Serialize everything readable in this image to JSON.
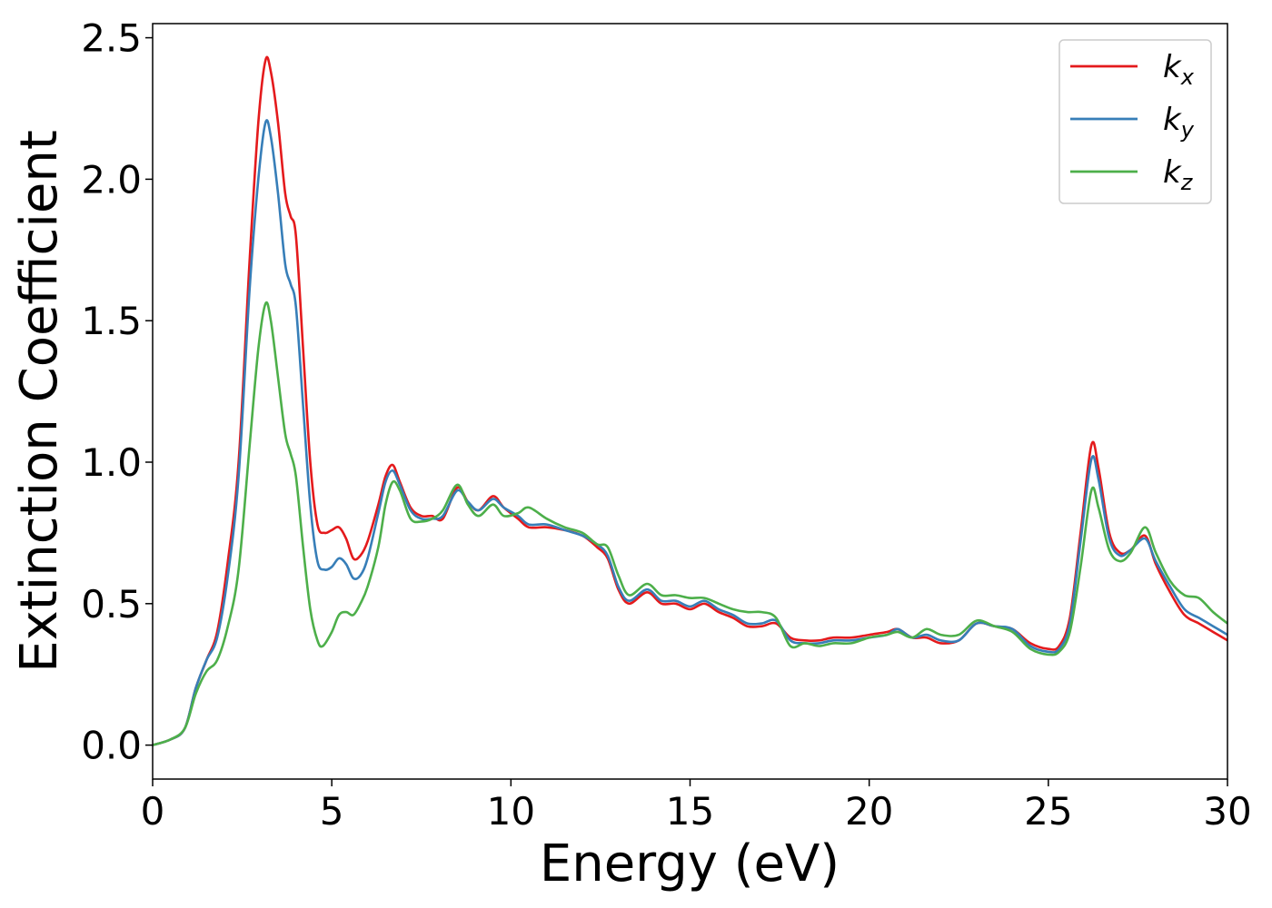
{
  "chart_data": {
    "type": "line",
    "xlabel": "Energy (eV)",
    "ylabel": "Extinction Coefficient",
    "xlim": [
      0,
      30
    ],
    "ylim": [
      -0.12,
      2.55
    ],
    "xticks": [
      0,
      5,
      10,
      15,
      20,
      25,
      30
    ],
    "xtick_labels": [
      "0",
      "5",
      "10",
      "15",
      "20",
      "25",
      "30"
    ],
    "yticks": [
      0.0,
      0.5,
      1.0,
      1.5,
      2.0,
      2.5
    ],
    "ytick_labels": [
      "0.0",
      "0.5",
      "1.0",
      "1.5",
      "2.0",
      "2.5"
    ],
    "grid": false,
    "legend_position": "top-right",
    "series": [
      {
        "name": "kx",
        "label_main": "k",
        "label_sub": "x",
        "color": "#e41a1c",
        "points": [
          [
            0,
            0
          ],
          [
            0.5,
            0.02
          ],
          [
            0.9,
            0.06
          ],
          [
            1.2,
            0.2
          ],
          [
            1.5,
            0.3
          ],
          [
            1.8,
            0.4
          ],
          [
            2.1,
            0.65
          ],
          [
            2.4,
            1.0
          ],
          [
            2.7,
            1.7
          ],
          [
            2.95,
            2.2
          ],
          [
            3.15,
            2.42
          ],
          [
            3.3,
            2.38
          ],
          [
            3.5,
            2.2
          ],
          [
            3.7,
            1.95
          ],
          [
            3.85,
            1.87
          ],
          [
            4.0,
            1.8
          ],
          [
            4.2,
            1.4
          ],
          [
            4.4,
            1.0
          ],
          [
            4.6,
            0.78
          ],
          [
            4.8,
            0.75
          ],
          [
            5.0,
            0.76
          ],
          [
            5.2,
            0.77
          ],
          [
            5.4,
            0.73
          ],
          [
            5.6,
            0.66
          ],
          [
            5.8,
            0.67
          ],
          [
            6.0,
            0.72
          ],
          [
            6.3,
            0.85
          ],
          [
            6.5,
            0.95
          ],
          [
            6.7,
            0.99
          ],
          [
            6.9,
            0.93
          ],
          [
            7.2,
            0.84
          ],
          [
            7.5,
            0.81
          ],
          [
            7.8,
            0.81
          ],
          [
            8.1,
            0.8
          ],
          [
            8.5,
            0.91
          ],
          [
            8.8,
            0.86
          ],
          [
            9.1,
            0.83
          ],
          [
            9.5,
            0.88
          ],
          [
            9.8,
            0.84
          ],
          [
            10.2,
            0.8
          ],
          [
            10.5,
            0.77
          ],
          [
            11.0,
            0.77
          ],
          [
            11.5,
            0.76
          ],
          [
            12.0,
            0.74
          ],
          [
            12.4,
            0.7
          ],
          [
            12.7,
            0.66
          ],
          [
            13.0,
            0.55
          ],
          [
            13.3,
            0.5
          ],
          [
            13.8,
            0.54
          ],
          [
            14.2,
            0.5
          ],
          [
            14.6,
            0.5
          ],
          [
            15.0,
            0.48
          ],
          [
            15.4,
            0.5
          ],
          [
            15.8,
            0.47
          ],
          [
            16.2,
            0.45
          ],
          [
            16.6,
            0.42
          ],
          [
            17.0,
            0.42
          ],
          [
            17.4,
            0.43
          ],
          [
            17.8,
            0.38
          ],
          [
            18.2,
            0.37
          ],
          [
            18.6,
            0.37
          ],
          [
            19.0,
            0.38
          ],
          [
            19.5,
            0.38
          ],
          [
            20.0,
            0.39
          ],
          [
            20.5,
            0.4
          ],
          [
            20.8,
            0.41
          ],
          [
            21.2,
            0.38
          ],
          [
            21.6,
            0.38
          ],
          [
            22.0,
            0.36
          ],
          [
            22.5,
            0.37
          ],
          [
            23.0,
            0.43
          ],
          [
            23.5,
            0.42
          ],
          [
            24.0,
            0.41
          ],
          [
            24.5,
            0.36
          ],
          [
            25.0,
            0.34
          ],
          [
            25.3,
            0.35
          ],
          [
            25.6,
            0.45
          ],
          [
            25.9,
            0.75
          ],
          [
            26.2,
            1.06
          ],
          [
            26.4,
            0.98
          ],
          [
            26.7,
            0.75
          ],
          [
            27.0,
            0.68
          ],
          [
            27.3,
            0.69
          ],
          [
            27.7,
            0.74
          ],
          [
            28.0,
            0.64
          ],
          [
            28.4,
            0.54
          ],
          [
            28.8,
            0.46
          ],
          [
            29.2,
            0.43
          ],
          [
            29.6,
            0.4
          ],
          [
            30.0,
            0.37
          ]
        ]
      },
      {
        "name": "ky",
        "label_main": "k",
        "label_sub": "y",
        "color": "#377eb8",
        "points": [
          [
            0,
            0
          ],
          [
            0.5,
            0.02
          ],
          [
            0.9,
            0.06
          ],
          [
            1.2,
            0.2
          ],
          [
            1.5,
            0.3
          ],
          [
            1.8,
            0.38
          ],
          [
            2.1,
            0.6
          ],
          [
            2.4,
            0.95
          ],
          [
            2.7,
            1.6
          ],
          [
            2.95,
            2.0
          ],
          [
            3.15,
            2.2
          ],
          [
            3.3,
            2.15
          ],
          [
            3.5,
            1.95
          ],
          [
            3.7,
            1.7
          ],
          [
            3.85,
            1.63
          ],
          [
            4.0,
            1.55
          ],
          [
            4.2,
            1.2
          ],
          [
            4.4,
            0.85
          ],
          [
            4.6,
            0.65
          ],
          [
            4.8,
            0.62
          ],
          [
            5.0,
            0.63
          ],
          [
            5.2,
            0.66
          ],
          [
            5.4,
            0.64
          ],
          [
            5.6,
            0.59
          ],
          [
            5.8,
            0.6
          ],
          [
            6.0,
            0.66
          ],
          [
            6.3,
            0.82
          ],
          [
            6.5,
            0.93
          ],
          [
            6.7,
            0.97
          ],
          [
            6.9,
            0.92
          ],
          [
            7.2,
            0.83
          ],
          [
            7.5,
            0.8
          ],
          [
            7.8,
            0.8
          ],
          [
            8.1,
            0.81
          ],
          [
            8.5,
            0.9
          ],
          [
            8.8,
            0.86
          ],
          [
            9.1,
            0.83
          ],
          [
            9.5,
            0.87
          ],
          [
            9.8,
            0.84
          ],
          [
            10.2,
            0.81
          ],
          [
            10.5,
            0.78
          ],
          [
            11.0,
            0.78
          ],
          [
            11.5,
            0.76
          ],
          [
            12.0,
            0.74
          ],
          [
            12.4,
            0.71
          ],
          [
            12.7,
            0.67
          ],
          [
            13.0,
            0.56
          ],
          [
            13.3,
            0.51
          ],
          [
            13.8,
            0.55
          ],
          [
            14.2,
            0.51
          ],
          [
            14.6,
            0.51
          ],
          [
            15.0,
            0.49
          ],
          [
            15.4,
            0.51
          ],
          [
            15.8,
            0.48
          ],
          [
            16.2,
            0.46
          ],
          [
            16.6,
            0.43
          ],
          [
            17.0,
            0.43
          ],
          [
            17.4,
            0.44
          ],
          [
            17.8,
            0.37
          ],
          [
            18.2,
            0.36
          ],
          [
            18.6,
            0.36
          ],
          [
            19.0,
            0.37
          ],
          [
            19.5,
            0.37
          ],
          [
            20.0,
            0.38
          ],
          [
            20.5,
            0.39
          ],
          [
            20.8,
            0.41
          ],
          [
            21.2,
            0.38
          ],
          [
            21.6,
            0.39
          ],
          [
            22.0,
            0.37
          ],
          [
            22.5,
            0.37
          ],
          [
            23.0,
            0.43
          ],
          [
            23.5,
            0.42
          ],
          [
            24.0,
            0.41
          ],
          [
            24.5,
            0.35
          ],
          [
            25.0,
            0.33
          ],
          [
            25.3,
            0.34
          ],
          [
            25.6,
            0.43
          ],
          [
            25.9,
            0.72
          ],
          [
            26.2,
            1.01
          ],
          [
            26.4,
            0.94
          ],
          [
            26.7,
            0.73
          ],
          [
            27.0,
            0.67
          ],
          [
            27.3,
            0.69
          ],
          [
            27.7,
            0.73
          ],
          [
            28.0,
            0.65
          ],
          [
            28.4,
            0.56
          ],
          [
            28.8,
            0.48
          ],
          [
            29.2,
            0.45
          ],
          [
            29.6,
            0.42
          ],
          [
            30.0,
            0.39
          ]
        ]
      },
      {
        "name": "kz",
        "label_main": "k",
        "label_sub": "z",
        "color": "#4daf4a",
        "points": [
          [
            0,
            0
          ],
          [
            0.5,
            0.02
          ],
          [
            0.9,
            0.06
          ],
          [
            1.2,
            0.18
          ],
          [
            1.5,
            0.26
          ],
          [
            1.8,
            0.3
          ],
          [
            2.1,
            0.42
          ],
          [
            2.4,
            0.62
          ],
          [
            2.7,
            1.05
          ],
          [
            2.95,
            1.4
          ],
          [
            3.15,
            1.56
          ],
          [
            3.3,
            1.5
          ],
          [
            3.5,
            1.3
          ],
          [
            3.7,
            1.1
          ],
          [
            3.85,
            1.03
          ],
          [
            4.0,
            0.95
          ],
          [
            4.2,
            0.7
          ],
          [
            4.4,
            0.48
          ],
          [
            4.6,
            0.37
          ],
          [
            4.75,
            0.35
          ],
          [
            5.0,
            0.4
          ],
          [
            5.2,
            0.46
          ],
          [
            5.4,
            0.47
          ],
          [
            5.6,
            0.46
          ],
          [
            5.8,
            0.5
          ],
          [
            6.0,
            0.56
          ],
          [
            6.3,
            0.7
          ],
          [
            6.5,
            0.85
          ],
          [
            6.7,
            0.93
          ],
          [
            6.9,
            0.9
          ],
          [
            7.2,
            0.8
          ],
          [
            7.5,
            0.79
          ],
          [
            7.8,
            0.8
          ],
          [
            8.1,
            0.83
          ],
          [
            8.5,
            0.92
          ],
          [
            8.8,
            0.85
          ],
          [
            9.1,
            0.81
          ],
          [
            9.5,
            0.85
          ],
          [
            9.8,
            0.81
          ],
          [
            10.2,
            0.82
          ],
          [
            10.5,
            0.84
          ],
          [
            11.0,
            0.8
          ],
          [
            11.5,
            0.77
          ],
          [
            12.0,
            0.75
          ],
          [
            12.4,
            0.71
          ],
          [
            12.7,
            0.7
          ],
          [
            13.0,
            0.6
          ],
          [
            13.3,
            0.53
          ],
          [
            13.8,
            0.57
          ],
          [
            14.2,
            0.53
          ],
          [
            14.6,
            0.53
          ],
          [
            15.0,
            0.52
          ],
          [
            15.4,
            0.52
          ],
          [
            15.8,
            0.5
          ],
          [
            16.2,
            0.48
          ],
          [
            16.6,
            0.47
          ],
          [
            17.0,
            0.47
          ],
          [
            17.4,
            0.45
          ],
          [
            17.8,
            0.35
          ],
          [
            18.2,
            0.36
          ],
          [
            18.6,
            0.35
          ],
          [
            19.0,
            0.36
          ],
          [
            19.5,
            0.36
          ],
          [
            20.0,
            0.38
          ],
          [
            20.5,
            0.39
          ],
          [
            20.8,
            0.4
          ],
          [
            21.2,
            0.38
          ],
          [
            21.6,
            0.41
          ],
          [
            22.0,
            0.39
          ],
          [
            22.5,
            0.39
          ],
          [
            23.0,
            0.44
          ],
          [
            23.5,
            0.42
          ],
          [
            24.0,
            0.4
          ],
          [
            24.5,
            0.34
          ],
          [
            25.0,
            0.32
          ],
          [
            25.3,
            0.33
          ],
          [
            25.6,
            0.4
          ],
          [
            25.9,
            0.63
          ],
          [
            26.2,
            0.9
          ],
          [
            26.4,
            0.84
          ],
          [
            26.7,
            0.69
          ],
          [
            27.0,
            0.65
          ],
          [
            27.3,
            0.68
          ],
          [
            27.7,
            0.77
          ],
          [
            28.0,
            0.68
          ],
          [
            28.4,
            0.58
          ],
          [
            28.8,
            0.53
          ],
          [
            29.2,
            0.52
          ],
          [
            29.6,
            0.47
          ],
          [
            30.0,
            0.43
          ]
        ]
      }
    ]
  }
}
